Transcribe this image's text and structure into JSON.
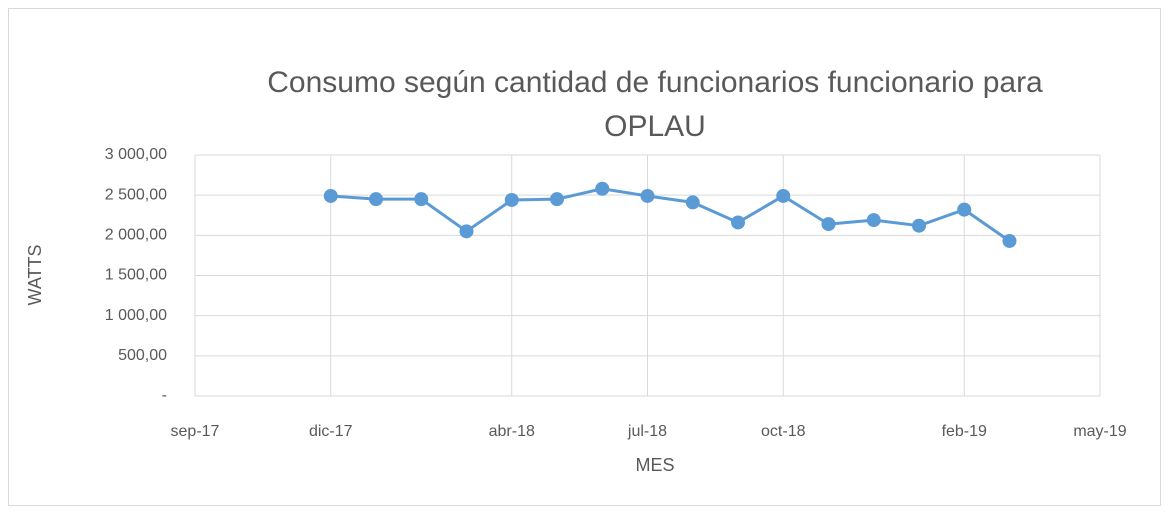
{
  "chart_data": {
    "type": "line",
    "title": "Consumo según cantidad de funcionarios funcionario para OPLAU",
    "title_lines": [
      "Consumo según cantidad de funcionarios funcionario para",
      "OPLAU"
    ],
    "xlabel": "MES",
    "ylabel": "WATTS",
    "x": [
      "2017-12",
      "2018-01",
      "2018-02",
      "2018-03",
      "2018-04",
      "2018-05",
      "2018-06",
      "2018-07",
      "2018-08",
      "2018-09",
      "2018-10",
      "2018-11",
      "2018-12",
      "2019-01",
      "2019-02",
      "2019-03"
    ],
    "series": [
      {
        "name": "Consumo",
        "color": "#5b9bd5",
        "values": [
          2490,
          2450,
          2450,
          2050,
          2440,
          2450,
          2580,
          2490,
          2410,
          2160,
          2490,
          2140,
          2190,
          2120,
          2320,
          1930
        ]
      }
    ],
    "xlim": [
      "2017-09",
      "2019-05"
    ],
    "xticks": [
      {
        "value": "2017-09",
        "label": "sep-17"
      },
      {
        "value": "2017-12",
        "label": "dic-17"
      },
      {
        "value": "2018-04",
        "label": "abr-18"
      },
      {
        "value": "2018-07",
        "label": "jul-18"
      },
      {
        "value": "2018-10",
        "label": "oct-18"
      },
      {
        "value": "2019-02",
        "label": "feb-19"
      },
      {
        "value": "2019-05",
        "label": "may-19"
      }
    ],
    "ylim": [
      0,
      3000
    ],
    "yticks": [
      {
        "value": 0,
        "label": "-"
      },
      {
        "value": 500,
        "label": "500,00"
      },
      {
        "value": 1000,
        "label": "1 000,00"
      },
      {
        "value": 1500,
        "label": "1 500,00"
      },
      {
        "value": 2000,
        "label": "2 000,00"
      },
      {
        "value": 2500,
        "label": "2 500,00"
      },
      {
        "value": 3000,
        "label": "3 000,00"
      }
    ],
    "grid": true
  }
}
